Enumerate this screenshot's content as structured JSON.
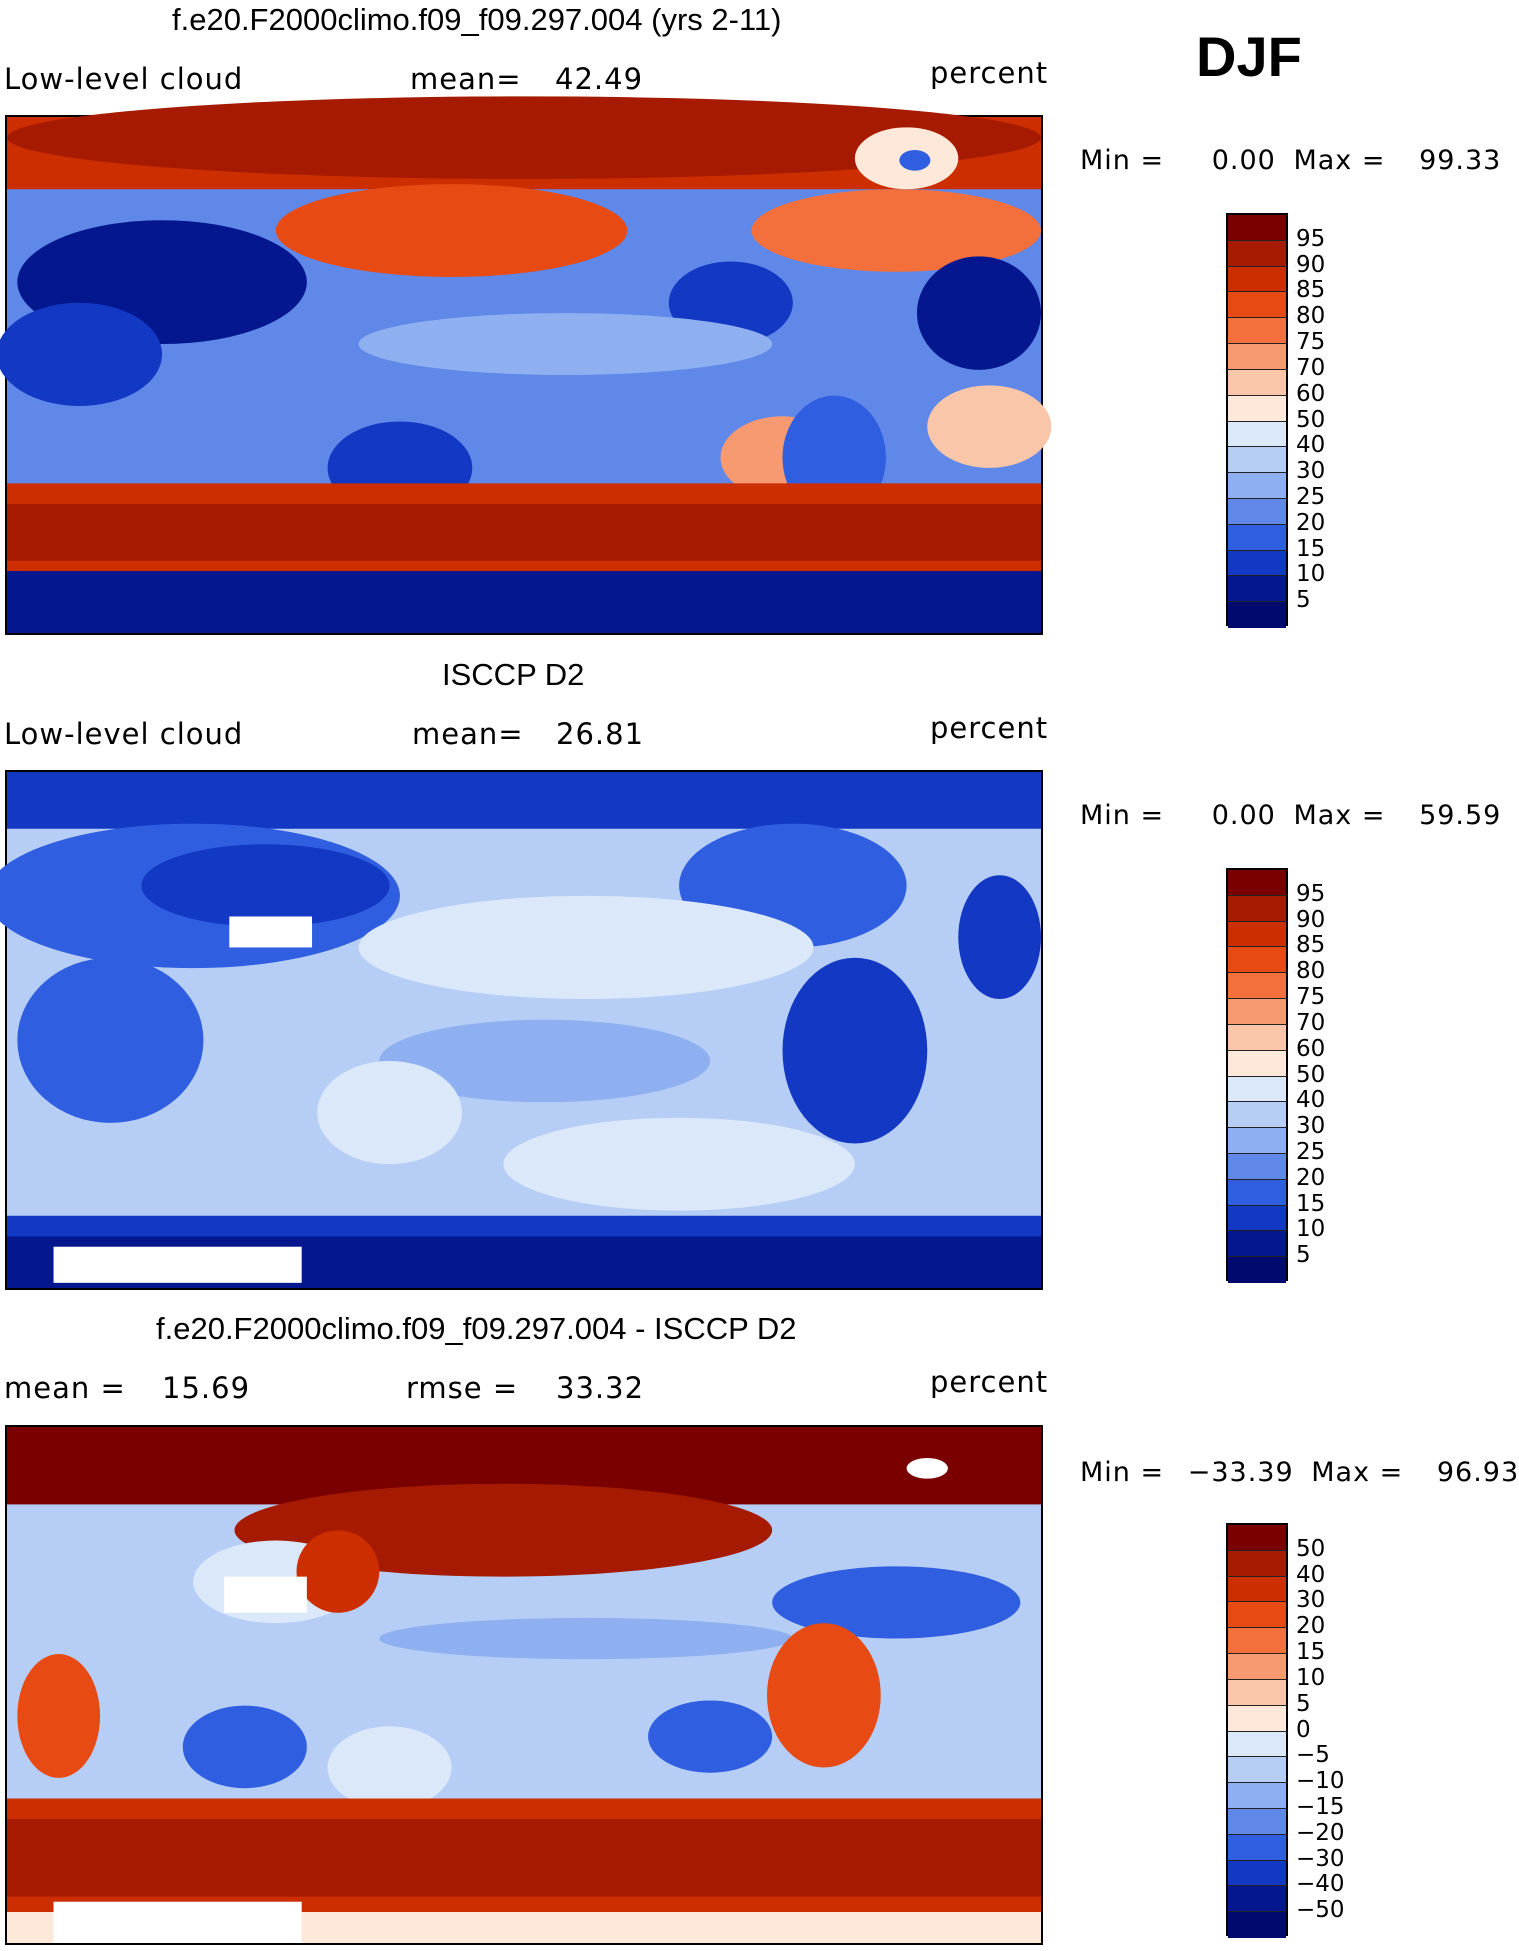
{
  "season": "DJF",
  "panels": [
    {
      "title": "f.e20.F2000climo.f09_f09.297.004 (yrs 2-11)",
      "left_label": "Low-level cloud",
      "mid_label": "mean=",
      "mid_value": "42.49",
      "right_label": "percent",
      "min_label": "Min =",
      "min_value": "0.00",
      "max_label": "Max =",
      "max_value": "99.33",
      "colorbar_labels": [
        "95",
        "90",
        "85",
        "80",
        "75",
        "70",
        "60",
        "50",
        "40",
        "30",
        "25",
        "20",
        "15",
        "10",
        "5"
      ]
    },
    {
      "title": "ISCCP D2",
      "left_label": "Low-level cloud",
      "mid_label": "mean=",
      "mid_value": "26.81",
      "right_label": "percent",
      "min_label": "Min =",
      "min_value": "0.00",
      "max_label": "Max =",
      "max_value": "59.59",
      "colorbar_labels": [
        "95",
        "90",
        "85",
        "80",
        "75",
        "70",
        "60",
        "50",
        "40",
        "30",
        "25",
        "20",
        "15",
        "10",
        "5"
      ]
    },
    {
      "title": "f.e20.F2000climo.f09_f09.297.004 - ISCCP D2",
      "left_label": "mean =",
      "left_value": "15.69",
      "mid_label": "rmse =",
      "mid_value": "33.32",
      "right_label": "percent",
      "min_label": "Min =",
      "min_value": "−33.39",
      "max_label": "Max =",
      "max_value": "96.93",
      "colorbar_labels": [
        "50",
        "40",
        "30",
        "20",
        "15",
        "10",
        "5",
        "0",
        "−5",
        "−10",
        "−15",
        "−20",
        "−30",
        "−40",
        "−50"
      ]
    }
  ],
  "colors": {
    "scale": [
      "#7a0000",
      "#a51a00",
      "#cc2e00",
      "#e84a14",
      "#f3703c",
      "#f79a72",
      "#fac6aa",
      "#fde8da",
      "#dbe8fa",
      "#b6cdf5",
      "#8eb0f0",
      "#5f88e8",
      "#2f5fe0",
      "#1238c4",
      "#04178e",
      "#000a6e"
    ]
  }
}
